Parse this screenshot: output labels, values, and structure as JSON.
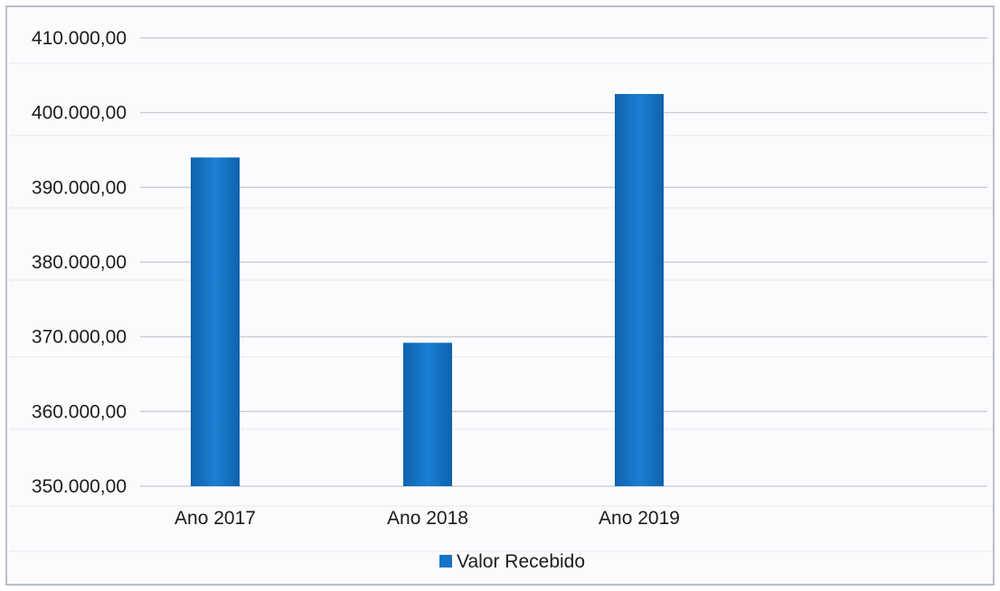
{
  "chart_data": {
    "type": "bar",
    "categories": [
      "Ano 2017",
      "Ano 2018",
      "Ano 2019"
    ],
    "series": [
      {
        "name": "Valor Recebido",
        "values": [
          394000,
          369200,
          402500
        ],
        "color": "#1473c6"
      }
    ],
    "ylim": [
      350000,
      410000
    ],
    "yticks": [
      410000,
      400000,
      390000,
      380000,
      370000,
      360000,
      350000
    ],
    "ytick_labels": [
      "410.000,00",
      "400.000,00",
      "390.000,00",
      "380.000,00",
      "370.000,00",
      "360.000,00",
      "350.000,00"
    ],
    "grid": true,
    "legend": "bottom",
    "title": "",
    "xlabel": "",
    "ylabel": ""
  }
}
